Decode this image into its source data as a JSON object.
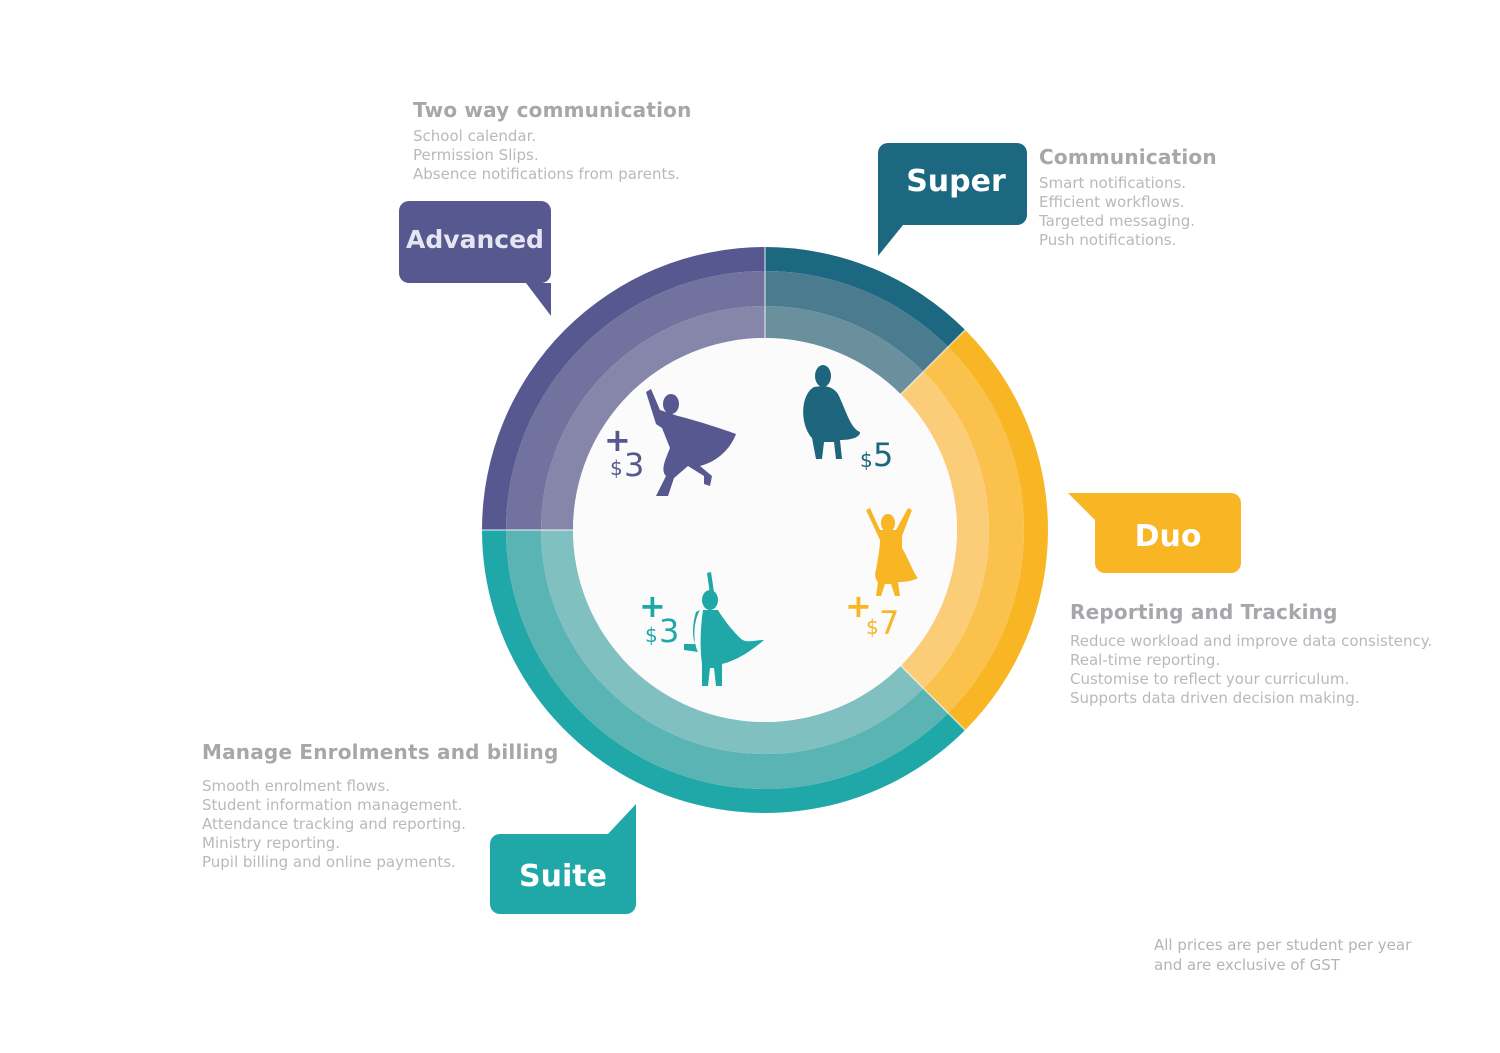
{
  "diagram": {
    "plans": [
      {
        "id": "super",
        "name": "Super",
        "color": "#1b6880",
        "feature_heading": "Communication",
        "features": [
          "Smart notifications.",
          "Efficient workflows.",
          "Targeted messaging.",
          "Push notifications."
        ],
        "price_plus": "",
        "price_currency": "$",
        "price_value": "5"
      },
      {
        "id": "duo",
        "name": "Duo",
        "color": "#f8b524",
        "feature_heading": "Reporting and Tracking",
        "features": [
          "Reduce workload and improve data consistency.",
          "Real-time reporting.",
          "Customise to reflect your curriculum.",
          "Supports data driven decision making."
        ],
        "price_plus": "+",
        "price_currency": "$",
        "price_value": "7"
      },
      {
        "id": "suite",
        "name": "Suite",
        "color": "#20a8a8",
        "feature_heading": "Manage Enrolments and billing",
        "features": [
          "Smooth enrolment flows.",
          "Student information management.",
          "Attendance tracking and reporting.",
          "Ministry reporting.",
          "Pupil billing and online payments."
        ],
        "price_plus": "+",
        "price_currency": "$",
        "price_value": "3"
      },
      {
        "id": "advanced",
        "name": "Advanced",
        "color": "#56588f",
        "feature_heading": "Two way communication",
        "features": [
          "School calendar.",
          "Permission Slips.",
          "Absence notifications from parents."
        ],
        "price_plus": "+",
        "price_currency": "$",
        "price_value": "3"
      }
    ],
    "note": [
      "All prices are per student per year",
      "and are exclusive of GST"
    ]
  }
}
